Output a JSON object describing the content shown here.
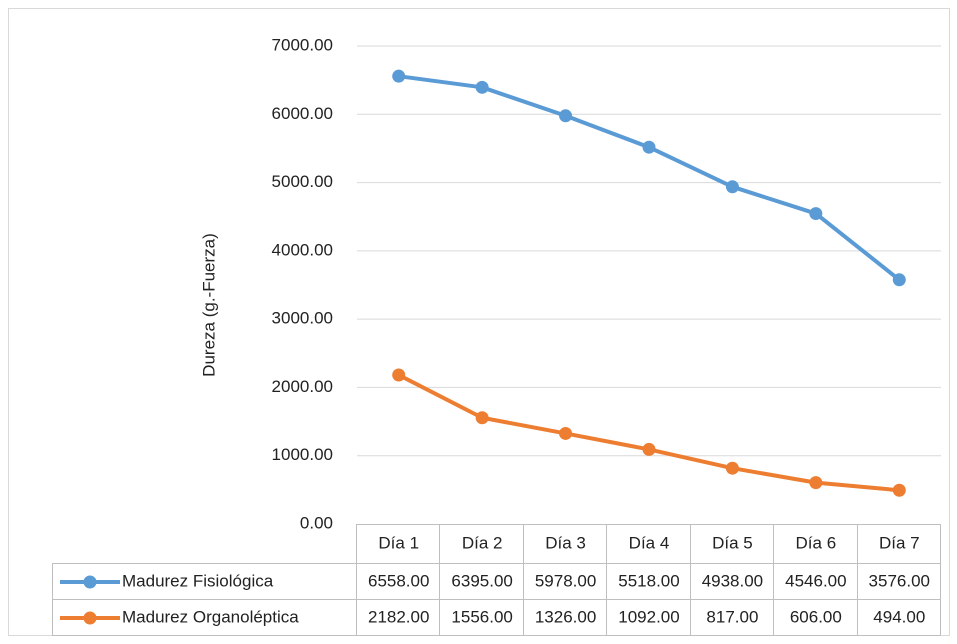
{
  "chart_data": {
    "type": "line",
    "y_label": "Dureza (g.-Fuerza)",
    "categories": [
      "Día 1",
      "Día 2",
      "Día 3",
      "Día 4",
      "Día 5",
      "Día 6",
      "Día 7"
    ],
    "series": [
      {
        "name": "Madurez Fisiológica",
        "color": "#5b9bd5",
        "values": [
          6558,
          6395,
          5978,
          5518,
          4938,
          4546,
          3576
        ],
        "value_labels": [
          "6558.00",
          "6395.00",
          "5978.00",
          "5518.00",
          "4938.00",
          "4546.00",
          "3576.00"
        ]
      },
      {
        "name": "Madurez Organoléptica",
        "color": "#ed7d31",
        "values": [
          2182,
          1556,
          1326,
          1092,
          817,
          606,
          494
        ],
        "value_labels": [
          "2182.00",
          "1556.00",
          "1326.00",
          "1092.00",
          "817.00",
          "606.00",
          "494.00"
        ]
      }
    ],
    "ylim": [
      0,
      7000
    ],
    "yticks": [
      {
        "value": 0,
        "label": "0.00"
      },
      {
        "value": 1000,
        "label": "1000.00"
      },
      {
        "value": 2000,
        "label": "2000.00"
      },
      {
        "value": 3000,
        "label": "3000.00"
      },
      {
        "value": 4000,
        "label": "4000.00"
      },
      {
        "value": 5000,
        "label": "5000.00"
      },
      {
        "value": 6000,
        "label": "6000.00"
      },
      {
        "value": 7000,
        "label": "7000.00"
      }
    ],
    "grid": true
  }
}
